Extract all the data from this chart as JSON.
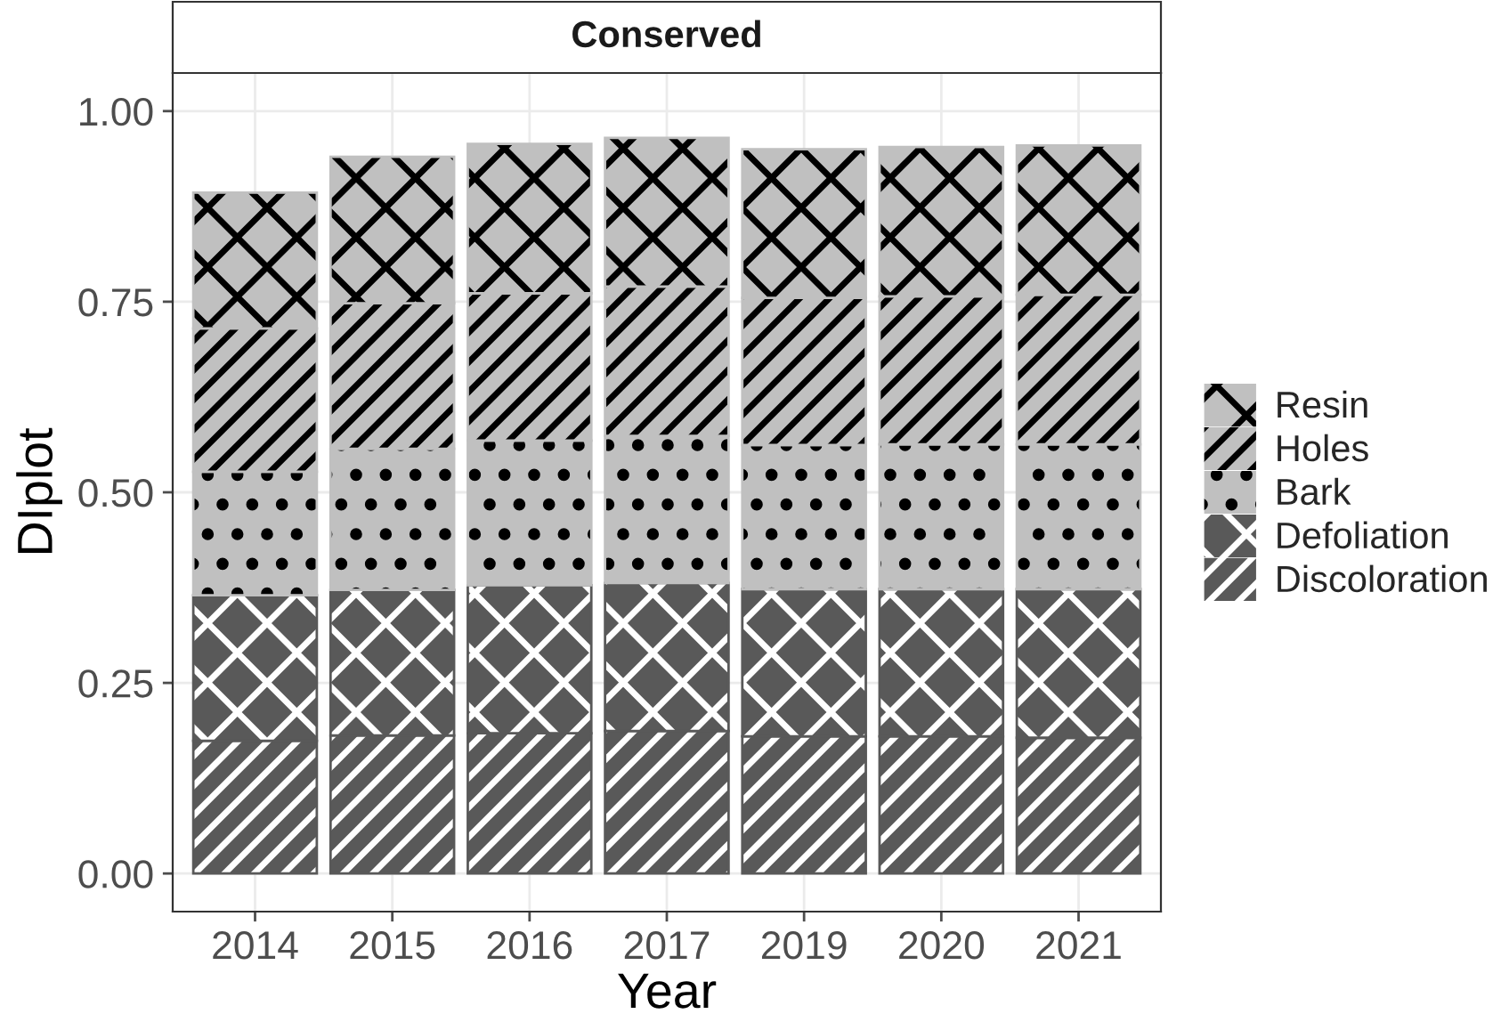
{
  "chart_data": {
    "type": "bar",
    "title": "Conserved",
    "xlabel": "Year",
    "ylabel": "DIplot",
    "stacked": true,
    "categories": [
      "2014",
      "2015",
      "2016",
      "2017",
      "2019",
      "2020",
      "2021"
    ],
    "series": [
      {
        "name": "Discoloration",
        "color": "#595959",
        "values": [
          0.174,
          0.181,
          0.184,
          0.187,
          0.18,
          0.18,
          0.178
        ]
      },
      {
        "name": "Defoliation",
        "color": "#595959",
        "values": [
          0.191,
          0.191,
          0.194,
          0.194,
          0.193,
          0.193,
          0.195
        ]
      },
      {
        "name": "Bark",
        "color": "#c0c0c0",
        "values": [
          0.162,
          0.185,
          0.19,
          0.193,
          0.189,
          0.19,
          0.19
        ]
      },
      {
        "name": "Holes",
        "color": "#c0c0c0",
        "values": [
          0.188,
          0.191,
          0.193,
          0.196,
          0.193,
          0.194,
          0.196
        ]
      },
      {
        "name": "Resin",
        "color": "#c0c0c0",
        "values": [
          0.178,
          0.192,
          0.196,
          0.195,
          0.195,
          0.196,
          0.196
        ]
      }
    ],
    "ylim": [
      -0.05,
      1.05
    ],
    "yticks": [
      {
        "value": 0,
        "label": "0.00"
      },
      {
        "value": 0.25,
        "label": "0.25"
      },
      {
        "value": 0.5,
        "label": "0.50"
      },
      {
        "value": 0.75,
        "label": "0.75"
      },
      {
        "value": 1,
        "label": "1.00"
      }
    ],
    "grid": true,
    "legend": "right"
  }
}
